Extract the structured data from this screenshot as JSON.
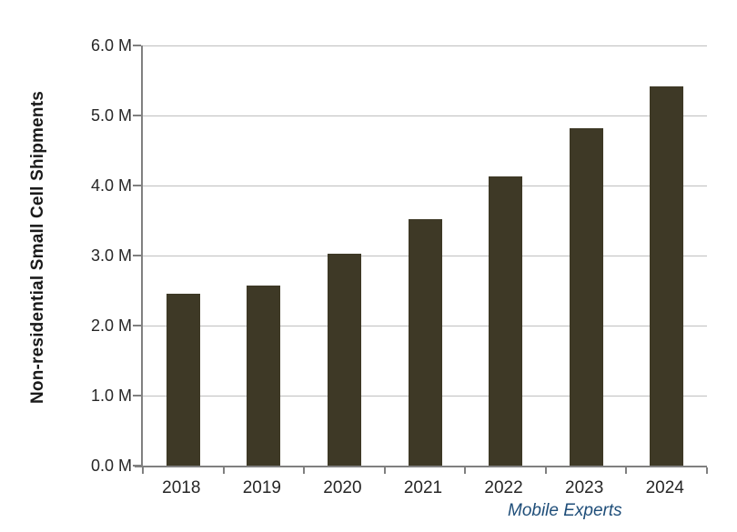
{
  "page": {
    "background_color": "#ffffff"
  },
  "chart_data": {
    "type": "bar",
    "title": "",
    "xlabel": "",
    "ylabel": "Non-residential Small Cell Shipments",
    "categories": [
      "2018",
      "2019",
      "2020",
      "2021",
      "2022",
      "2023",
      "2024"
    ],
    "values": [
      2.45,
      2.57,
      3.03,
      3.52,
      4.13,
      4.82,
      5.42
    ],
    "unit": "M",
    "ylim": [
      0,
      6
    ],
    "ytick_step": 1,
    "ytick_labels": [
      "0.0 M",
      "1.0 M",
      "2.0 M",
      "3.0 M",
      "4.0 M",
      "5.0 M",
      "6.0 M"
    ],
    "grid": "horizontal",
    "legend": "none",
    "bar_color": "#3e3926",
    "gridline_color": "#bfbfbf",
    "axis_color": "#808080",
    "tick_text_color": "#262626"
  },
  "source": {
    "credit": "Mobile Experts",
    "color": "#1f4e79"
  }
}
